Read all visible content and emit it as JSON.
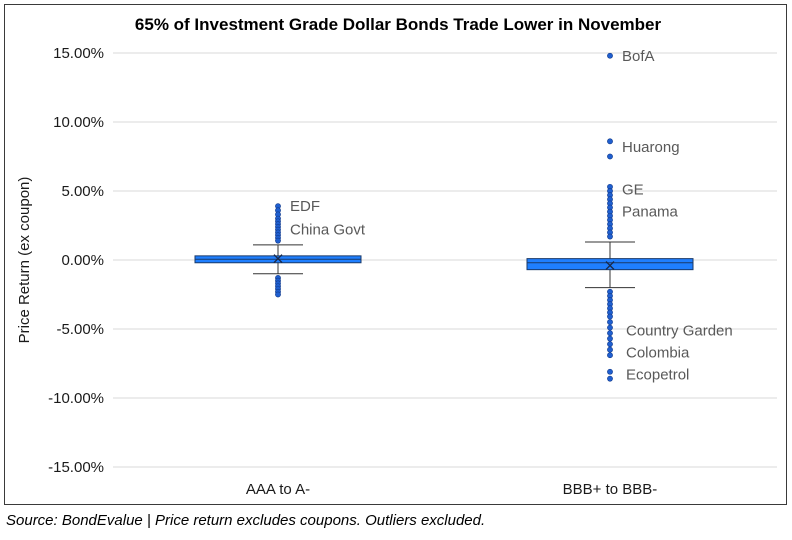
{
  "chart_data": {
    "type": "box",
    "title": "65% of Investment Grade Dollar Bonds Trade Lower in November",
    "xlabel": "",
    "ylabel": "Price Return (ex coupon)",
    "ylim": [
      -15,
      15
    ],
    "y_ticks": [
      "15.00%",
      "10.00%",
      "5.00%",
      "0.00%",
      "-5.00%",
      "-10.00%",
      "-15.00%"
    ],
    "y_tick_values": [
      15,
      10,
      5,
      0,
      -5,
      -10,
      -15
    ],
    "grid": true,
    "legend": "none",
    "box_color": "#1f7fff",
    "outlier_color": "#1f5fd0",
    "categories": [
      {
        "label": "AAA to A-",
        "q1": -0.2,
        "median": 0.05,
        "q3": 0.3,
        "mean": 0.1,
        "whisker_low": -1.0,
        "whisker_high": 1.1,
        "outliers": [
          3.9,
          3.6,
          3.3,
          3.0,
          2.8,
          2.6,
          2.4,
          2.2,
          2.0,
          1.8,
          1.6,
          1.4,
          -1.3,
          -1.5,
          -1.7,
          -1.9,
          -2.1,
          -2.3,
          -2.5
        ],
        "annotations": [
          {
            "text": "EDF",
            "value": 3.9
          },
          {
            "text": "China Govt",
            "value": 2.2
          }
        ]
      },
      {
        "label": "BBB+ to BBB-",
        "q1": -0.7,
        "median": -0.2,
        "q3": 0.1,
        "mean": -0.4,
        "whisker_low": -2.0,
        "whisker_high": 1.3,
        "outliers": [
          14.8,
          8.6,
          7.5,
          5.3,
          5.0,
          4.7,
          4.4,
          4.1,
          3.8,
          3.5,
          3.2,
          2.9,
          2.6,
          2.3,
          2.0,
          1.7,
          -2.3,
          -2.6,
          -2.9,
          -3.2,
          -3.5,
          -3.8,
          -4.1,
          -4.5,
          -4.9,
          -5.3,
          -5.7,
          -6.1,
          -6.5,
          -6.9,
          -8.1,
          -8.6
        ],
        "annotations": [
          {
            "text": "BofA",
            "value": 14.8
          },
          {
            "text": "Huarong",
            "value": 8.2
          },
          {
            "text": "GE",
            "value": 5.1
          },
          {
            "text": "Panama",
            "value": 3.5
          },
          {
            "text": "Country Garden",
            "value": -5.1
          },
          {
            "text": "Colombia",
            "value": -6.7
          },
          {
            "text": "Ecopetrol",
            "value": -8.3
          }
        ]
      }
    ]
  },
  "source_note": "Source: BondEvalue | Price return excludes coupons. Outliers excluded."
}
